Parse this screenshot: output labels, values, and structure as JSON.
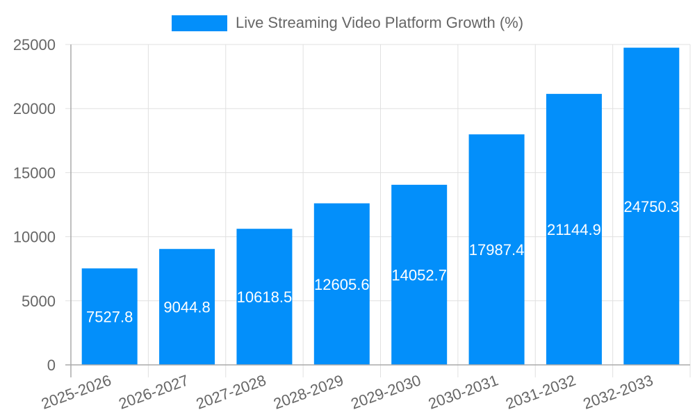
{
  "chart_data": {
    "type": "bar",
    "title": "",
    "xlabel": "",
    "ylabel": "",
    "categories": [
      "2025-2026",
      "2026-2027",
      "2027-2028",
      "2028-2029",
      "2029-2030",
      "2030-2031",
      "2031-2032",
      "2032-2033"
    ],
    "series": [
      {
        "name": "Live Streaming Video Platform Growth (%)",
        "color": "#038ffa",
        "values": [
          7527.8,
          9044.8,
          10618.5,
          12605.6,
          14052.7,
          17987.4,
          21144.9,
          24750.3
        ]
      }
    ],
    "value_labels": [
      "7527.8",
      "9044.8",
      "10618.5",
      "12605.6",
      "14052.7",
      "17987.4",
      "21144.9",
      "24750.3"
    ],
    "ylim": [
      0,
      25000
    ],
    "yticks": [
      0,
      5000,
      10000,
      15000,
      20000,
      25000
    ],
    "ytick_labels": [
      "0",
      "5000",
      "10000",
      "15000",
      "20000",
      "25000"
    ],
    "grid": true,
    "legend_position": "top",
    "xtick_rotation": -20
  },
  "legend": {
    "label": "Live Streaming Video Platform Growth (%)",
    "color": "#038ffa"
  },
  "colors": {
    "bar": "#038ffa",
    "grid": "#e0e0e0",
    "axis": "#aaaaaa",
    "tick_text": "#666666",
    "value_text": "#ffffff"
  }
}
